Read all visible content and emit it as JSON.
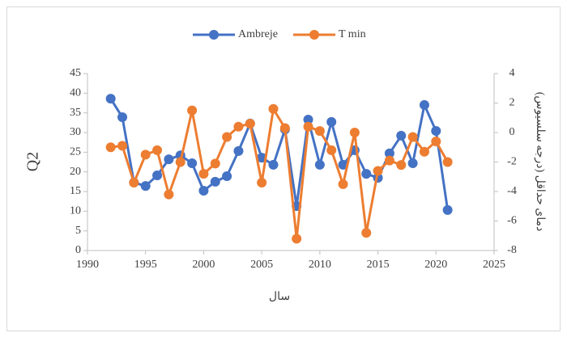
{
  "chart_data": {
    "type": "line",
    "x_title": "سال",
    "y_title": "Q2",
    "y2_title": "دمای حداقل (درجه سلسیوس)",
    "x": [
      1992,
      1993,
      1994,
      1995,
      1996,
      1997,
      1998,
      1999,
      2000,
      2001,
      2002,
      2003,
      2004,
      2005,
      2006,
      2007,
      2008,
      2009,
      2010,
      2011,
      2012,
      2013,
      2014,
      2015,
      2016,
      2017,
      2018,
      2019,
      2020,
      2021
    ],
    "series": [
      {
        "name": "Ambreje",
        "color": "#4472c4",
        "values": [
          38.6,
          33.9,
          17.3,
          16.4,
          19.1,
          23.2,
          24.2,
          22.2,
          15.2,
          17.5,
          18.9,
          25.3,
          32.3,
          23.6,
          21.8,
          30.8,
          11.3,
          33.3,
          21.8,
          32.7,
          21.8,
          25.5,
          19.5,
          18.5,
          24.7,
          29.2,
          22.2,
          37.0,
          30.4,
          10.3
        ]
      },
      {
        "name": "T min",
        "color": "#ed7d31",
        "axis": "y2",
        "values": [
          -1.0,
          -0.9,
          -3.4,
          -1.5,
          -1.2,
          -4.2,
          -2.0,
          1.5,
          -2.8,
          -2.1,
          -0.3,
          0.4,
          0.6,
          -3.4,
          1.6,
          0.3,
          -7.2,
          0.4,
          0.1,
          -1.2,
          -3.5,
          0.0,
          -6.8,
          -2.6,
          -1.9,
          -2.2,
          -0.3,
          -1.3,
          -0.6,
          -2.0
        ]
      }
    ],
    "xlim": [
      1990,
      2025
    ],
    "xticks": [
      1990,
      1995,
      2000,
      2005,
      2010,
      2015,
      2020,
      2025
    ],
    "ylim": [
      0,
      45
    ],
    "yticks": [
      0,
      5,
      10,
      15,
      20,
      25,
      30,
      35,
      40,
      45
    ],
    "y2lim": [
      -8,
      4
    ],
    "y2ticks": [
      -8,
      -6,
      -4,
      -2,
      0,
      2,
      4
    ],
    "legend": "top"
  }
}
